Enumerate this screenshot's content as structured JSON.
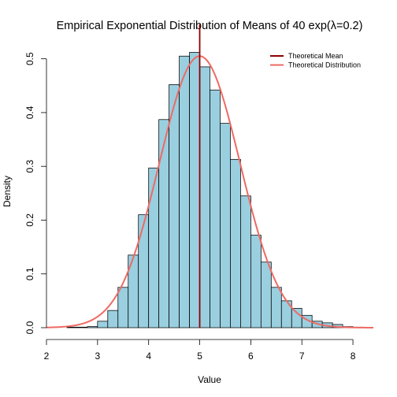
{
  "chart_data": {
    "type": "bar",
    "title": "Empirical Exponential Distribution of Means of 40 exp(λ=0.2)",
    "xlabel": "Value",
    "ylabel": "Density",
    "xlim": [
      2,
      8.4
    ],
    "ylim": [
      0,
      0.52
    ],
    "x_ticks": [
      2,
      3,
      4,
      5,
      6,
      7,
      8
    ],
    "y_ticks": [
      0.0,
      0.1,
      0.2,
      0.3,
      0.4,
      0.5
    ],
    "x_tick_labels": [
      "2",
      "3",
      "4",
      "5",
      "6",
      "7",
      "8"
    ],
    "y_tick_labels": [
      "0.0",
      "0.1",
      "0.2",
      "0.3",
      "0.4",
      "0.5"
    ],
    "grid": false,
    "legend_position": "top-right",
    "bin_width": 0.2,
    "bin_edges": [
      2.4,
      2.6,
      2.8,
      3.0,
      3.2,
      3.4,
      3.6,
      3.8,
      4.0,
      4.2,
      4.4,
      4.6,
      4.8,
      5.0,
      5.2,
      5.4,
      5.6,
      5.8,
      6.0,
      6.2,
      6.4,
      6.6,
      6.8,
      7.0,
      7.2,
      7.4,
      7.6,
      7.8,
      8.0,
      8.2
    ],
    "densities": [
      0.001,
      0.001,
      0.002,
      0.012,
      0.032,
      0.075,
      0.135,
      0.21,
      0.297,
      0.387,
      0.452,
      0.505,
      0.512,
      0.485,
      0.442,
      0.38,
      0.313,
      0.245,
      0.172,
      0.122,
      0.075,
      0.05,
      0.036,
      0.023,
      0.012,
      0.009,
      0.006,
      0.002,
      0.001
    ],
    "bar_fill": "#9ACFE0",
    "bar_stroke": "#000000",
    "theoretical_mean": 5,
    "theoretical_sd": 0.79,
    "curve_x_range": [
      2,
      8.4
    ],
    "series": [
      {
        "name": "Theoretical Mean",
        "color": "#8B0000",
        "kind": "vline"
      },
      {
        "name": "Theoretical Distribution",
        "color": "#EE6A64",
        "kind": "normal-curve"
      }
    ]
  }
}
